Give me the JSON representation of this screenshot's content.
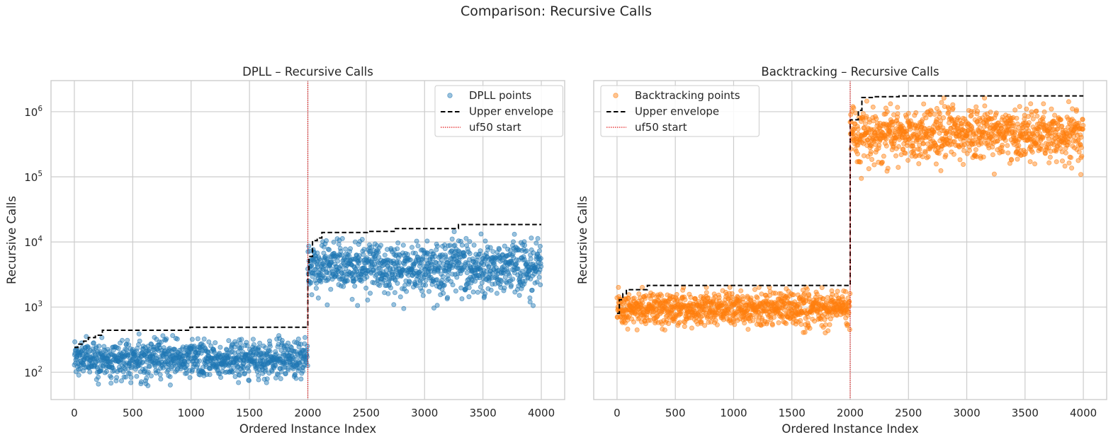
{
  "figure_title": "Comparison: Recursive Calls",
  "chart_data": [
    {
      "type": "scatter",
      "title": "DPLL – Recursive Calls",
      "xlabel": "Ordered Instance Index",
      "ylabel": "Recursive Calls",
      "yscale": "log",
      "xlim": [
        -200,
        4200
      ],
      "ylim": [
        38,
        3000000
      ],
      "xticks": [
        0,
        500,
        1000,
        1500,
        2000,
        2500,
        3000,
        3500,
        4000
      ],
      "xtick_labels": [
        "0",
        "500",
        "1000",
        "1500",
        "2000",
        "2500",
        "3000",
        "3500",
        "4000"
      ],
      "yticks": [
        100,
        1000,
        10000,
        100000,
        1000000
      ],
      "ytick_labels": [
        {
          "base": "10",
          "exp": "2"
        },
        {
          "base": "10",
          "exp": "3"
        },
        {
          "base": "10",
          "exp": "4"
        },
        {
          "base": "10",
          "exp": "5"
        },
        {
          "base": "10",
          "exp": "6"
        }
      ],
      "show_y_tick_labels": true,
      "grid": true,
      "legend_position": "top-right",
      "legend": {
        "points": "DPLL points",
        "envelope": "Upper envelope",
        "divider": "uf50 start"
      },
      "colors": {
        "points": "#1f77b4",
        "envelope": "#000000",
        "divider": "#e41a1c"
      },
      "segments": [
        {
          "x_range": [
            0,
            1999
          ],
          "median": 160,
          "log_sd": 0.14,
          "min": 62,
          "max": 440
        },
        {
          "x_range": [
            2000,
            3999
          ],
          "median": 4200,
          "log_sd": 0.2,
          "min": 950,
          "max": 18000
        }
      ],
      "envelope": [
        {
          "x": 0,
          "y": 240
        },
        {
          "x": 30,
          "y": 270
        },
        {
          "x": 80,
          "y": 300
        },
        {
          "x": 120,
          "y": 340
        },
        {
          "x": 180,
          "y": 370
        },
        {
          "x": 240,
          "y": 440
        },
        {
          "x": 990,
          "y": 490
        },
        {
          "x": 1999,
          "y": 490
        },
        {
          "x": 2000,
          "y": 3500
        },
        {
          "x": 2010,
          "y": 6000
        },
        {
          "x": 2040,
          "y": 10500
        },
        {
          "x": 2080,
          "y": 11500
        },
        {
          "x": 2120,
          "y": 14000
        },
        {
          "x": 2510,
          "y": 14500
        },
        {
          "x": 2740,
          "y": 16000
        },
        {
          "x": 3290,
          "y": 18500
        },
        {
          "x": 4000,
          "y": 18500
        }
      ],
      "divider_x": 2000
    },
    {
      "type": "scatter",
      "title": "Backtracking – Recursive Calls",
      "xlabel": "Ordered Instance Index",
      "ylabel": "Recursive Calls",
      "yscale": "log",
      "xlim": [
        -200,
        4200
      ],
      "ylim": [
        38,
        3000000
      ],
      "xticks": [
        0,
        500,
        1000,
        1500,
        2000,
        2500,
        3000,
        3500,
        4000
      ],
      "xtick_labels": [
        "0",
        "500",
        "1000",
        "1500",
        "2000",
        "2500",
        "3000",
        "3500",
        "4000"
      ],
      "yticks": [
        100,
        1000,
        10000,
        100000,
        1000000
      ],
      "ytick_labels": [],
      "show_y_tick_labels": false,
      "grid": true,
      "legend_position": "top-left",
      "legend": {
        "points": "Backtracking points",
        "envelope": "Upper envelope",
        "divider": "uf50 start"
      },
      "colors": {
        "points": "#ff7f0e",
        "envelope": "#000000",
        "divider": "#e41a1c"
      },
      "segments": [
        {
          "x_range": [
            0,
            1999
          ],
          "median": 950,
          "log_sd": 0.13,
          "min": 380,
          "max": 2100
        },
        {
          "x_range": [
            2000,
            3999
          ],
          "median": 450000,
          "log_sd": 0.2,
          "min": 70000,
          "max": 1700000
        }
      ],
      "envelope": [
        {
          "x": 0,
          "y": 800
        },
        {
          "x": 20,
          "y": 1300
        },
        {
          "x": 50,
          "y": 1600
        },
        {
          "x": 80,
          "y": 1850
        },
        {
          "x": 260,
          "y": 2150
        },
        {
          "x": 1999,
          "y": 2150
        },
        {
          "x": 2000,
          "y": 750000
        },
        {
          "x": 2070,
          "y": 1050000
        },
        {
          "x": 2100,
          "y": 1650000
        },
        {
          "x": 2200,
          "y": 1700000
        },
        {
          "x": 2420,
          "y": 1750000
        },
        {
          "x": 4000,
          "y": 1750000
        }
      ],
      "divider_x": 2000
    }
  ]
}
